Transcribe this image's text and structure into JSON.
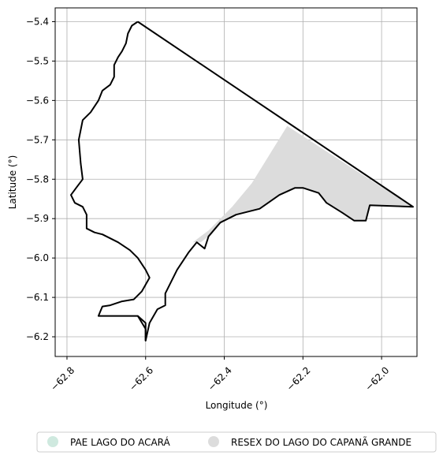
{
  "chart_data": {
    "type": "map",
    "xlabel": "Longitude (°)",
    "ylabel": "Latitude (°)",
    "xlim": [
      -62.83,
      -61.91
    ],
    "ylim": [
      -6.25,
      -5.365
    ],
    "grid": true,
    "x_ticks": [
      {
        "value": -62.8,
        "label": "−62.8"
      },
      {
        "value": -62.6,
        "label": "−62.6"
      },
      {
        "value": -62.4,
        "label": "−62.4"
      },
      {
        "value": -62.2,
        "label": "−62.2"
      },
      {
        "value": -62.0,
        "label": "−62.0"
      }
    ],
    "y_ticks": [
      {
        "value": -5.4,
        "label": "−5.4"
      },
      {
        "value": -5.5,
        "label": "−5.5"
      },
      {
        "value": -5.6,
        "label": "−5.6"
      },
      {
        "value": -5.7,
        "label": "−5.7"
      },
      {
        "value": -5.8,
        "label": "−5.8"
      },
      {
        "value": -5.9,
        "label": "−5.9"
      },
      {
        "value": -6.0,
        "label": "−6.0"
      },
      {
        "value": -6.1,
        "label": "−6.1"
      },
      {
        "value": -6.2,
        "label": "−6.2"
      }
    ],
    "legend_position": "bottom-center",
    "legend": [
      {
        "label": "PAE LAGO DO ACARÁ",
        "color": "#cfe9df"
      },
      {
        "label": "RESEX DO LAGO DO CAPANÃ GRANDE",
        "color": "#dcdcdc"
      }
    ],
    "shaded_area": {
      "color": "#dcdcdc",
      "points": [
        [
          -62.48,
          -5.96
        ],
        [
          -62.44,
          -5.93
        ],
        [
          -62.38,
          -5.87
        ],
        [
          -62.33,
          -5.81
        ],
        [
          -62.24,
          -5.665
        ],
        [
          -62.0,
          -5.82
        ],
        [
          -61.96,
          -5.84
        ],
        [
          -61.92,
          -5.87
        ],
        [
          -62.03,
          -5.866
        ],
        [
          -62.04,
          -5.905
        ],
        [
          -62.07,
          -5.905
        ],
        [
          -62.1,
          -5.885
        ],
        [
          -62.14,
          -5.86
        ],
        [
          -62.16,
          -5.835
        ],
        [
          -62.2,
          -5.822
        ],
        [
          -62.22,
          -5.822
        ],
        [
          -62.26,
          -5.84
        ],
        [
          -62.31,
          -5.875
        ],
        [
          -62.37,
          -5.89
        ],
        [
          -62.41,
          -5.91
        ],
        [
          -62.44,
          -5.945
        ],
        [
          -62.46,
          -5.96
        ]
      ]
    },
    "boundary": {
      "color": "#000000",
      "points": [
        [
          -62.62,
          -5.4
        ],
        [
          -61.92,
          -5.87
        ],
        [
          -62.03,
          -5.866
        ],
        [
          -62.04,
          -5.905
        ],
        [
          -62.07,
          -5.905
        ],
        [
          -62.1,
          -5.885
        ],
        [
          -62.14,
          -5.86
        ],
        [
          -62.16,
          -5.835
        ],
        [
          -62.2,
          -5.822
        ],
        [
          -62.22,
          -5.822
        ],
        [
          -62.26,
          -5.84
        ],
        [
          -62.31,
          -5.875
        ],
        [
          -62.37,
          -5.89
        ],
        [
          -62.41,
          -5.91
        ],
        [
          -62.44,
          -5.945
        ],
        [
          -62.45,
          -5.976
        ],
        [
          -62.47,
          -5.96
        ],
        [
          -62.49,
          -5.985
        ],
        [
          -62.52,
          -6.03
        ],
        [
          -62.55,
          -6.09
        ],
        [
          -62.55,
          -6.12
        ],
        [
          -62.57,
          -6.13
        ],
        [
          -62.59,
          -6.165
        ],
        [
          -62.6,
          -6.21
        ],
        [
          -62.6,
          -6.18
        ],
        [
          -62.62,
          -6.147
        ],
        [
          -62.72,
          -6.147
        ],
        [
          -62.71,
          -6.123
        ],
        [
          -62.69,
          -6.12
        ],
        [
          -62.66,
          -6.11
        ],
        [
          -62.63,
          -6.105
        ],
        [
          -62.61,
          -6.085
        ],
        [
          -62.59,
          -6.05
        ],
        [
          -62.6,
          -6.03
        ],
        [
          -62.62,
          -6.0
        ],
        [
          -62.64,
          -5.98
        ],
        [
          -62.67,
          -5.96
        ],
        [
          -62.71,
          -5.94
        ],
        [
          -62.73,
          -5.935
        ],
        [
          -62.75,
          -5.925
        ],
        [
          -62.75,
          -5.89
        ],
        [
          -62.76,
          -5.87
        ],
        [
          -62.78,
          -5.86
        ],
        [
          -62.79,
          -5.84
        ],
        [
          -62.775,
          -5.82
        ],
        [
          -62.76,
          -5.8
        ],
        [
          -62.765,
          -5.76
        ],
        [
          -62.77,
          -5.7
        ],
        [
          -62.76,
          -5.65
        ],
        [
          -62.74,
          -5.63
        ],
        [
          -62.72,
          -5.6
        ],
        [
          -62.71,
          -5.575
        ],
        [
          -62.69,
          -5.56
        ],
        [
          -62.68,
          -5.54
        ],
        [
          -62.68,
          -5.51
        ],
        [
          -62.67,
          -5.49
        ],
        [
          -62.66,
          -5.475
        ],
        [
          -62.65,
          -5.455
        ],
        [
          -62.645,
          -5.43
        ],
        [
          -62.635,
          -5.41
        ],
        [
          -62.62,
          -5.4
        ]
      ]
    },
    "boundary_spur": {
      "color": "#000000",
      "points": [
        [
          -62.62,
          -6.147
        ],
        [
          -62.6,
          -6.165
        ],
        [
          -62.6,
          -6.21
        ]
      ]
    }
  }
}
